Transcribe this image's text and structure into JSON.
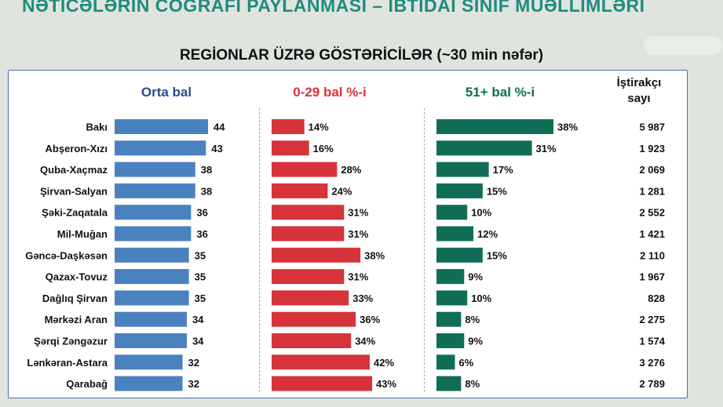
{
  "slide_title": "NƏTİCƏLƏRİN COĞRAFİ PAYLANMASI – İBTİDAİ SİNİF MÜƏLLİMLƏRİ",
  "chart_title": "REGİONLAR ÜZRƏ GÖSTƏRİCİLƏR (~30 min nəfər)",
  "participants_header_line1": "İştirakçı",
  "participants_header_line2": "sayı",
  "colors": {
    "avg": "#4a82c0",
    "low": "#d6333a",
    "high": "#0f6e55",
    "title": "#1f8c7a"
  },
  "chart_data": {
    "type": "bar",
    "title": "REGİONLAR ÜZRƏ GÖSTƏRİCİLƏR (~30 min nəfər)",
    "categories": [
      "Bakı",
      "Abşeron-Xızı",
      "Quba-Xaçmaz",
      "Şirvan-Salyan",
      "Şəki-Zaqatala",
      "Mil-Muğan",
      "Gəncə-Daşkəsən",
      "Qazax-Tovuz",
      "Dağlıq Şirvan",
      "Mərkəzi Aran",
      "Şərqi Zəngəzur",
      "Lənkəran-Astara",
      "Qarabağ"
    ],
    "series": [
      {
        "name": "Orta bal",
        "values": [
          44,
          43,
          38,
          38,
          36,
          36,
          35,
          35,
          35,
          34,
          34,
          32,
          32
        ],
        "labels": [
          "44",
          "43",
          "38",
          "38",
          "36",
          "36",
          "35",
          "35",
          "35",
          "34",
          "34",
          "32",
          "32"
        ]
      },
      {
        "name": "0-29 bal %-i",
        "values": [
          14,
          16,
          28,
          24,
          31,
          31,
          38,
          31,
          33,
          36,
          34,
          42,
          43
        ],
        "labels": [
          "14%",
          "16%",
          "28%",
          "24%",
          "31%",
          "31%",
          "38%",
          "31%",
          "33%",
          "36%",
          "34%",
          "42%",
          "43%"
        ]
      },
      {
        "name": "51+ bal %-i",
        "values": [
          38,
          31,
          17,
          15,
          10,
          12,
          15,
          9,
          10,
          8,
          9,
          6,
          8
        ],
        "labels": [
          "38%",
          "31%",
          "17%",
          "15%",
          "10%",
          "12%",
          "15%",
          "9%",
          "10%",
          "8%",
          "9%",
          "6%",
          "8%"
        ]
      }
    ],
    "participants": {
      "name": "İştirakçı sayı",
      "values": [
        "5 987",
        "1 923",
        "2 069",
        "1 281",
        "2 552",
        "1 421",
        "2 110",
        "1 967",
        "828",
        "2 275",
        "1 574",
        "3 276",
        "2 789"
      ]
    },
    "grid": false,
    "legend": "none"
  }
}
